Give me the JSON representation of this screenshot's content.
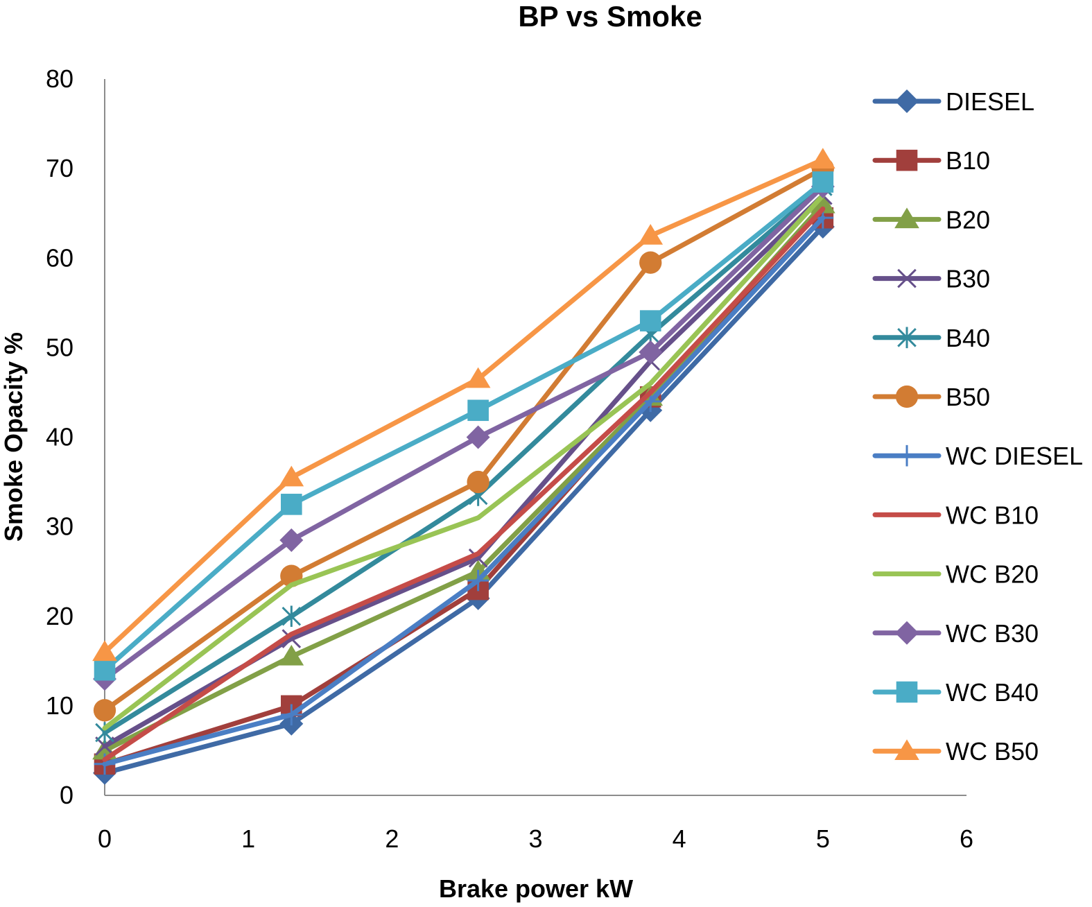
{
  "chart_data": {
    "type": "line",
    "title": "BP vs Smoke",
    "xlabel": "Brake power kW",
    "ylabel": "Smoke Opacity %",
    "xlim": [
      0,
      6
    ],
    "ylim": [
      0,
      80
    ],
    "x_ticks": [
      "0",
      "1",
      "2",
      "3",
      "4",
      "5",
      "6"
    ],
    "y_ticks": [
      "0",
      "10",
      "20",
      "30",
      "40",
      "50",
      "60",
      "70",
      "80"
    ],
    "grid": false,
    "legend_position": "right",
    "x": [
      0,
      1.3,
      2.6,
      3.8,
      5
    ],
    "series": [
      {
        "name": "DIESEL",
        "color": "#3f6aa5",
        "marker": "diamond",
        "values": [
          2.5,
          8,
          22,
          43,
          63.5
        ]
      },
      {
        "name": "B10",
        "color": "#a13f3c",
        "marker": "square",
        "values": [
          3.5,
          10,
          23,
          44.5,
          64.5
        ]
      },
      {
        "name": "B20",
        "color": "#82a047",
        "marker": "triangle",
        "values": [
          5,
          15.5,
          25,
          44.5,
          66
        ]
      },
      {
        "name": "B30",
        "color": "#66508a",
        "marker": "x",
        "values": [
          5.5,
          17.5,
          26.5,
          48.5,
          67
        ]
      },
      {
        "name": "B40",
        "color": "#338a9c",
        "marker": "star",
        "values": [
          7,
          20,
          33.5,
          51.5,
          68
        ]
      },
      {
        "name": "B50",
        "color": "#d27c33",
        "marker": "circle",
        "values": [
          9.5,
          24.5,
          35,
          59.5,
          70
        ]
      },
      {
        "name": "WC DIESEL",
        "color": "#4a7ec4",
        "marker": "plus",
        "values": [
          3.5,
          9,
          24,
          44,
          64.5
        ]
      },
      {
        "name": "WC B10",
        "color": "#c54c48",
        "marker": "none",
        "values": [
          4,
          18,
          27,
          45,
          65.5
        ]
      },
      {
        "name": "WC B20",
        "color": "#99c455",
        "marker": "none",
        "values": [
          7.5,
          23.5,
          31,
          46,
          67
        ]
      },
      {
        "name": "WC B30",
        "color": "#8064a2",
        "marker": "diamond",
        "values": [
          13,
          28.5,
          40,
          49.5,
          68
        ]
      },
      {
        "name": "WC B40",
        "color": "#4aacc6",
        "marker": "square",
        "values": [
          14,
          32.5,
          43,
          53,
          68.5
        ]
      },
      {
        "name": "WC B50",
        "color": "#f79646",
        "marker": "triangle",
        "values": [
          16,
          35.5,
          46.5,
          62.5,
          71
        ]
      }
    ]
  }
}
